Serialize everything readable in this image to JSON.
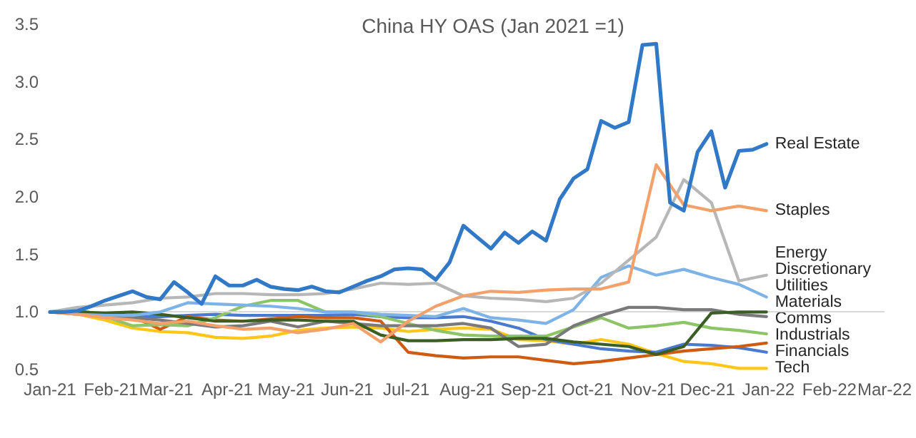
{
  "chart_data": {
    "type": "line",
    "title": "China HY OAS (Jan 2021 =1)",
    "x": [
      "2021-01-01",
      "2021-01-15",
      "2021-01-29",
      "2021-02-12",
      "2021-02-26",
      "2021-03-12",
      "2021-03-26",
      "2021-04-09",
      "2021-04-23",
      "2021-05-07",
      "2021-05-21",
      "2021-06-04",
      "2021-06-18",
      "2021-07-02",
      "2021-07-16",
      "2021-07-30",
      "2021-08-13",
      "2021-08-27",
      "2021-09-10",
      "2021-09-24",
      "2021-10-08",
      "2021-10-22",
      "2021-11-05",
      "2021-11-19",
      "2021-12-03",
      "2021-12-17",
      "2021-12-31"
    ],
    "series": [
      {
        "name": "Real Estate",
        "color": "#3179c7",
        "x": [
          "2021-01-01",
          "2021-01-08",
          "2021-01-15",
          "2021-01-22",
          "2021-01-29",
          "2021-02-05",
          "2021-02-12",
          "2021-02-19",
          "2021-02-26",
          "2021-03-05",
          "2021-03-12",
          "2021-03-19",
          "2021-03-26",
          "2021-04-02",
          "2021-04-09",
          "2021-04-16",
          "2021-04-23",
          "2021-04-30",
          "2021-05-07",
          "2021-05-14",
          "2021-05-21",
          "2021-05-28",
          "2021-06-04",
          "2021-06-11",
          "2021-06-18",
          "2021-06-25",
          "2021-07-02",
          "2021-07-09",
          "2021-07-16",
          "2021-07-23",
          "2021-07-30",
          "2021-08-06",
          "2021-08-13",
          "2021-08-20",
          "2021-08-27",
          "2021-09-03",
          "2021-09-10",
          "2021-09-17",
          "2021-09-24",
          "2021-10-01",
          "2021-10-08",
          "2021-10-15",
          "2021-10-22",
          "2021-10-29",
          "2021-11-05",
          "2021-11-12",
          "2021-11-19",
          "2021-11-26",
          "2021-12-03",
          "2021-12-10",
          "2021-12-17",
          "2021-12-24",
          "2021-12-31"
        ],
        "values": [
          1.0,
          1.0,
          1.01,
          1.05,
          1.1,
          1.14,
          1.18,
          1.13,
          1.11,
          1.26,
          1.17,
          1.07,
          1.31,
          1.23,
          1.23,
          1.28,
          1.22,
          1.2,
          1.19,
          1.22,
          1.18,
          1.17,
          1.22,
          1.27,
          1.31,
          1.37,
          1.38,
          1.37,
          1.28,
          1.43,
          1.75,
          1.65,
          1.55,
          1.69,
          1.6,
          1.7,
          1.62,
          1.98,
          2.16,
          2.24,
          2.66,
          2.6,
          2.65,
          3.32,
          3.33,
          1.95,
          1.88,
          2.39,
          2.57,
          2.08,
          2.4,
          2.41,
          2.46
        ]
      },
      {
        "name": "Staples",
        "color": "#f4a06a",
        "values": [
          1.0,
          0.98,
          0.95,
          0.93,
          0.9,
          0.92,
          0.88,
          0.85,
          0.86,
          0.82,
          0.85,
          0.9,
          0.74,
          0.92,
          1.05,
          1.14,
          1.18,
          1.17,
          1.19,
          1.2,
          1.2,
          1.26,
          2.28,
          1.93,
          1.88,
          1.92,
          1.88
        ]
      },
      {
        "name": "Energy",
        "color": "#b7b7b7",
        "values": [
          1.0,
          1.04,
          1.06,
          1.08,
          1.12,
          1.13,
          1.16,
          1.16,
          1.15,
          1.15,
          1.16,
          1.2,
          1.25,
          1.24,
          1.25,
          1.14,
          1.12,
          1.11,
          1.09,
          1.12,
          1.25,
          1.45,
          1.65,
          2.15,
          1.95,
          1.27,
          1.32
        ]
      },
      {
        "name": "Discretionary",
        "color": "#7db3e6",
        "values": [
          1.0,
          0.98,
          0.97,
          0.97,
          1.0,
          1.08,
          1.07,
          1.06,
          1.05,
          1.03,
          1.0,
          1.0,
          0.98,
          0.97,
          0.96,
          1.03,
          0.95,
          0.93,
          0.9,
          1.02,
          1.3,
          1.4,
          1.32,
          1.37,
          1.3,
          1.24,
          1.13
        ]
      },
      {
        "name": "Utilities",
        "color": "#3a5e24",
        "values": [
          1.0,
          1.0,
          0.99,
          1.0,
          0.98,
          0.95,
          0.92,
          0.92,
          0.93,
          0.93,
          0.92,
          0.92,
          0.8,
          0.75,
          0.75,
          0.76,
          0.76,
          0.77,
          0.77,
          0.74,
          0.72,
          0.7,
          0.63,
          0.7,
          0.99,
          1.0,
          1.0
        ]
      },
      {
        "name": "Materials",
        "color": "#7a7a7a",
        "values": [
          1.0,
          0.99,
          0.97,
          0.95,
          0.93,
          0.9,
          0.87,
          0.88,
          0.92,
          0.87,
          0.92,
          0.9,
          0.88,
          0.88,
          0.88,
          0.9,
          0.86,
          0.7,
          0.72,
          0.88,
          0.97,
          1.04,
          1.04,
          1.02,
          1.02,
          0.98,
          0.96
        ]
      },
      {
        "name": "Comms",
        "color": "#8cc467",
        "values": [
          1.0,
          0.99,
          0.96,
          0.88,
          0.89,
          0.88,
          0.95,
          1.05,
          1.1,
          1.1,
          1.0,
          1.0,
          0.96,
          0.9,
          0.84,
          0.8,
          0.79,
          0.79,
          0.79,
          0.87,
          0.95,
          0.86,
          0.88,
          0.91,
          0.86,
          0.84,
          0.81
        ]
      },
      {
        "name": "Industrials",
        "color": "#cf5b12",
        "values": [
          1.0,
          1.01,
          0.98,
          0.96,
          0.85,
          0.96,
          0.93,
          0.92,
          0.94,
          0.96,
          0.95,
          0.95,
          0.92,
          0.65,
          0.62,
          0.6,
          0.61,
          0.61,
          0.58,
          0.55,
          0.57,
          0.6,
          0.63,
          0.66,
          0.68,
          0.7,
          0.73
        ]
      },
      {
        "name": "Financials",
        "color": "#4a7ad0",
        "values": [
          1.0,
          0.99,
          0.98,
          0.96,
          0.96,
          0.97,
          0.98,
          0.97,
          0.97,
          0.97,
          0.97,
          0.98,
          0.96,
          0.95,
          0.95,
          0.96,
          0.92,
          0.86,
          0.76,
          0.72,
          0.68,
          0.66,
          0.65,
          0.72,
          0.71,
          0.69,
          0.65
        ]
      },
      {
        "name": "Tech",
        "color": "#ffc61a",
        "values": [
          1.0,
          0.98,
          0.93,
          0.86,
          0.83,
          0.82,
          0.78,
          0.77,
          0.79,
          0.84,
          0.86,
          0.87,
          0.86,
          0.83,
          0.85,
          0.86,
          0.85,
          0.76,
          0.75,
          0.72,
          0.76,
          0.72,
          0.64,
          0.57,
          0.55,
          0.51,
          0.51
        ]
      }
    ],
    "xlim": [
      "2021-01-01",
      "2022-03-01"
    ],
    "xticks": [
      {
        "value": "2021-01-01",
        "label": "Jan-21"
      },
      {
        "value": "2021-02-01",
        "label": "Feb-21"
      },
      {
        "value": "2021-03-01",
        "label": "Mar-21"
      },
      {
        "value": "2021-04-01",
        "label": "Apr-21"
      },
      {
        "value": "2021-05-01",
        "label": "May-21"
      },
      {
        "value": "2021-06-01",
        "label": "Jun-21"
      },
      {
        "value": "2021-07-01",
        "label": "Jul-21"
      },
      {
        "value": "2021-08-01",
        "label": "Aug-21"
      },
      {
        "value": "2021-09-01",
        "label": "Sep-21"
      },
      {
        "value": "2021-10-01",
        "label": "Oct-21"
      },
      {
        "value": "2021-11-01",
        "label": "Nov-21"
      },
      {
        "value": "2021-12-01",
        "label": "Dec-21"
      },
      {
        "value": "2022-01-01",
        "label": "Jan-22"
      },
      {
        "value": "2022-02-01",
        "label": "Feb-22"
      },
      {
        "value": "2022-03-01",
        "label": "Mar-22"
      }
    ],
    "ylim": [
      0.5,
      3.5
    ],
    "yticks": [
      {
        "value": 0.5,
        "label": "0.5"
      },
      {
        "value": 1,
        "label": "1.0"
      },
      {
        "value": 1.5,
        "label": "1.5"
      },
      {
        "value": 2,
        "label": "2.0"
      },
      {
        "value": 2.5,
        "label": "2.5"
      },
      {
        "value": 3,
        "label": "3.0"
      },
      {
        "value": 3.5,
        "label": "3.5"
      }
    ],
    "ref_lines": [
      {
        "axis": "y",
        "value": 1,
        "color": "#d9d9d9"
      }
    ],
    "grid": false,
    "legend": false,
    "marker": "none",
    "line_style": "solid"
  }
}
